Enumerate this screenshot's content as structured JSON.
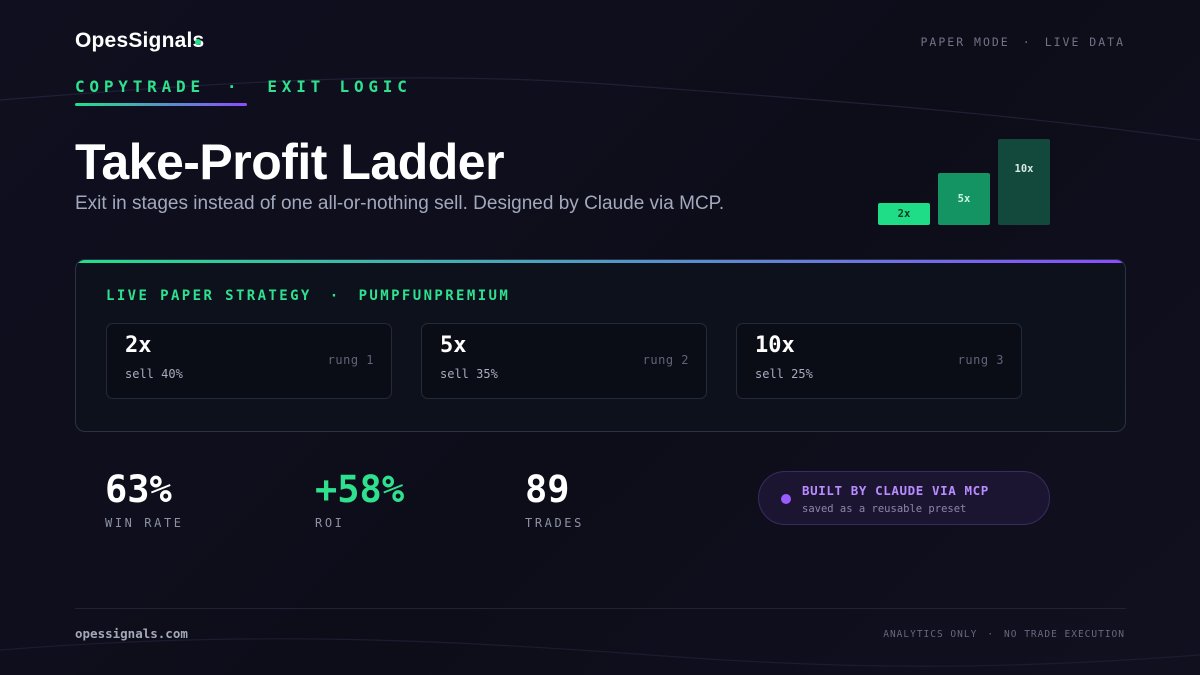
{
  "header": {
    "brand": "OpesSignals",
    "top_right": {
      "mode": "PAPER MODE",
      "separator": "·",
      "data": "LIVE DATA"
    }
  },
  "section_tag": {
    "left": "COPYTRADE",
    "separator": "·",
    "right": "EXIT LOGIC"
  },
  "hero": {
    "title": "Take-Profit Ladder",
    "subtitle": "Exit in stages instead of one all-or-nothing sell. Designed by Claude via MCP."
  },
  "ladder_graphic": [
    {
      "label": "2x"
    },
    {
      "label": "5x"
    },
    {
      "label": "10x"
    }
  ],
  "strategy_panel": {
    "label_left": "LIVE PAPER STRATEGY",
    "separator": "·",
    "label_right": "PUMPFUNPREMIUM",
    "rungs": [
      {
        "multiplier": "2x",
        "sell": "sell 40%",
        "rung": "rung 1"
      },
      {
        "multiplier": "5x",
        "sell": "sell 35%",
        "rung": "rung 2"
      },
      {
        "multiplier": "10x",
        "sell": "sell 25%",
        "rung": "rung 3"
      }
    ]
  },
  "stats": [
    {
      "value": "63%",
      "label": "WIN RATE"
    },
    {
      "value": "+58%",
      "label": "ROI"
    },
    {
      "value": "89",
      "label": "TRADES"
    }
  ],
  "badge": {
    "title": "BUILT BY CLAUDE VIA MCP",
    "subtitle": "saved as a reusable preset"
  },
  "footer": {
    "site": "opessignals.com",
    "right_left": "ANALYTICS ONLY",
    "separator": "·",
    "right_right": "NO TRADE EXECUTION"
  },
  "colors": {
    "background": "#0e0e1c",
    "accent_green": "#2fe08e",
    "accent_purple": "#9b5cff"
  }
}
